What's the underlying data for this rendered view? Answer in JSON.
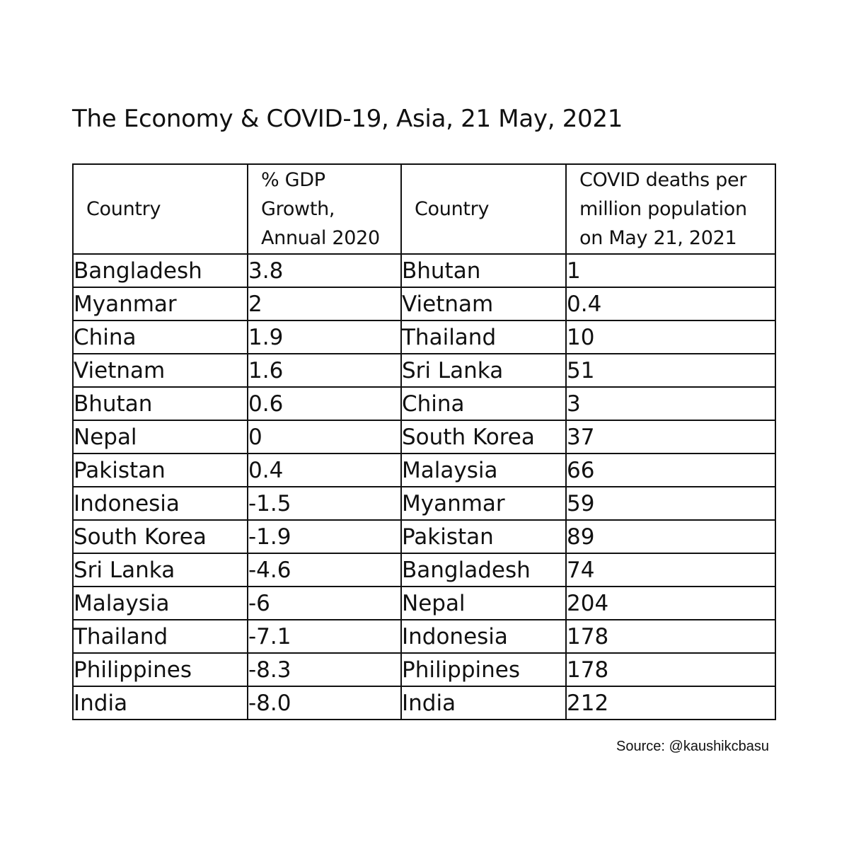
{
  "title": "The Economy & COVID-19, Asia, 21 May, 2021",
  "table": {
    "headers": [
      "Country",
      "% GDP Growth, Annual 2020",
      "Country",
      "COVID deaths per million population on May 21, 2021"
    ],
    "header_lines": {
      "col2": [
        "% GDP",
        "Growth,",
        "Annual 2020"
      ],
      "col4": [
        "COVID deaths per",
        "million population",
        "on May 21, 2021"
      ]
    },
    "rows": [
      {
        "gdp_country": "Bangladesh",
        "gdp": "3.8",
        "covid_country": "Bhutan",
        "deaths": "1"
      },
      {
        "gdp_country": "Myanmar",
        "gdp": "2",
        "covid_country": "Vietnam",
        "deaths": "0.4"
      },
      {
        "gdp_country": "China",
        "gdp": "1.9",
        "covid_country": "Thailand",
        "deaths": "10"
      },
      {
        "gdp_country": "Vietnam",
        "gdp": "1.6",
        "covid_country": "Sri Lanka",
        "deaths": "51"
      },
      {
        "gdp_country": "Bhutan",
        "gdp": "0.6",
        "covid_country": "China",
        "deaths": "3"
      },
      {
        "gdp_country": "Nepal",
        "gdp": "0",
        "covid_country": "South Korea",
        "deaths": "37"
      },
      {
        "gdp_country": "Pakistan",
        "gdp": "0.4",
        "covid_country": "Malaysia",
        "deaths": "66"
      },
      {
        "gdp_country": "Indonesia",
        "gdp": "-1.5",
        "covid_country": "Myanmar",
        "deaths": "59"
      },
      {
        "gdp_country": "South Korea",
        "gdp": "-1.9",
        "covid_country": "Pakistan",
        "deaths": "89"
      },
      {
        "gdp_country": "Sri Lanka",
        "gdp": "-4.6",
        "covid_country": "Bangladesh",
        "deaths": "74"
      },
      {
        "gdp_country": "Malaysia",
        "gdp": "-6",
        "covid_country": "Nepal",
        "deaths": "204"
      },
      {
        "gdp_country": "Thailand",
        "gdp": "-7.1",
        "covid_country": "Indonesia",
        "deaths": "178"
      },
      {
        "gdp_country": "Philippines",
        "gdp": "-8.3",
        "covid_country": "Philippines",
        "deaths": "178"
      },
      {
        "gdp_country": "India",
        "gdp": "-8.0",
        "covid_country": "India",
        "deaths": "212"
      }
    ]
  },
  "source": "Source: @kaushikcbasu"
}
